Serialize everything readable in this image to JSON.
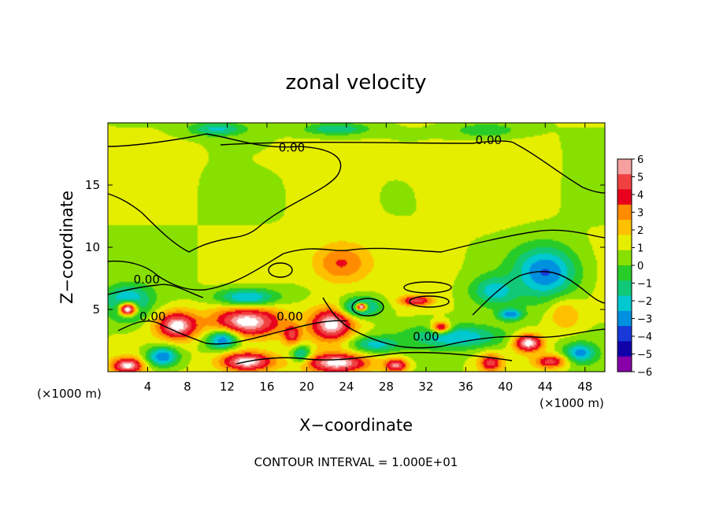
{
  "chart_data": {
    "type": "heatmap",
    "title": "zonal velocity",
    "xlabel": "X−coordinate",
    "ylabel": "Z−coordinate",
    "x_unit": "(×1000 m)",
    "z_unit": "(×1000 m)",
    "xlim": [
      0,
      50
    ],
    "ylim": [
      0,
      20
    ],
    "x_ticks": [
      4,
      8,
      12,
      16,
      20,
      24,
      28,
      32,
      36,
      40,
      44,
      48
    ],
    "x_tick_labels": [
      "4",
      "8",
      "12",
      "16",
      "20",
      "24",
      "28",
      "32",
      "36",
      "40",
      "44",
      "48"
    ],
    "y_ticks": [
      5,
      10,
      15
    ],
    "y_tick_labels": [
      "5",
      "10",
      "15"
    ],
    "colorbar": {
      "levels": [
        6,
        5,
        4,
        3,
        2,
        1,
        0,
        -1,
        -2,
        -3,
        -4,
        -5,
        -6
      ],
      "labels": [
        "6",
        "5",
        "4",
        "3",
        "2",
        "1",
        "0",
        "−1",
        "−2",
        "−3",
        "−4",
        "−5",
        "−6"
      ],
      "colors": [
        "#f7a0a0",
        "#f04040",
        "#e8001c",
        "#ff8c00",
        "#ffc000",
        "#e6ee00",
        "#88e000",
        "#28cc28",
        "#10c878",
        "#00c8d0",
        "#0090e0",
        "#1838d8",
        "#1000a8",
        "#8800a8"
      ]
    },
    "contour_labels": [
      {
        "text": "0.00",
        "x": 18.5,
        "y": 17.7
      },
      {
        "text": "0.00",
        "x": 38.3,
        "y": 18.3
      },
      {
        "text": "0.00",
        "x": 3.9,
        "y": 7.1
      },
      {
        "text": "0.00",
        "x": 4.5,
        "y": 4.1
      },
      {
        "text": "0.00",
        "x": 18.3,
        "y": 4.1
      },
      {
        "text": "0.00",
        "x": 32.0,
        "y": 2.5
      }
    ],
    "blobs": [
      {
        "x": 25,
        "y": 17,
        "rx": 24,
        "ry": 2.2,
        "v": 0.6
      },
      {
        "x": 37,
        "y": 15,
        "rx": 7,
        "ry": 3.5,
        "v": 1.2
      },
      {
        "x": 24,
        "y": 9,
        "rx": 6,
        "ry": 3,
        "v": 1.2
      },
      {
        "x": 23.5,
        "y": 8.7,
        "rx": 3.2,
        "ry": 1.8,
        "v": 3.6
      },
      {
        "x": 11,
        "y": 19.5,
        "rx": 3.5,
        "ry": 0.7,
        "v": -2.8
      },
      {
        "x": 23,
        "y": 19.5,
        "rx": 4,
        "ry": 0.6,
        "v": -2.5
      },
      {
        "x": 38,
        "y": 19.4,
        "rx": 4,
        "ry": 0.7,
        "v": -1.5
      },
      {
        "x": 44,
        "y": 8,
        "rx": 4,
        "ry": 2.6,
        "v": -4.6
      },
      {
        "x": 39,
        "y": 6.5,
        "rx": 3,
        "ry": 1.5,
        "v": -3.2
      },
      {
        "x": 2,
        "y": 6,
        "rx": 3,
        "ry": 1.3,
        "v": -3.0
      },
      {
        "x": 2,
        "y": 5,
        "rx": 2.2,
        "ry": 1.2,
        "v": -4.0
      },
      {
        "x": 2,
        "y": 5,
        "rx": 1.2,
        "ry": 0.7,
        "v": 6.8
      },
      {
        "x": 7,
        "y": 3.7,
        "rx": 2.6,
        "ry": 1.4,
        "v": 6.8
      },
      {
        "x": 14,
        "y": 4.0,
        "rx": 4.5,
        "ry": 1.6,
        "v": 6.8
      },
      {
        "x": 14,
        "y": 6.0,
        "rx": 4,
        "ry": 0.9,
        "v": -3.5
      },
      {
        "x": 11.5,
        "y": 2.5,
        "rx": 2,
        "ry": 1.0,
        "v": -4.0
      },
      {
        "x": 22.5,
        "y": 3.8,
        "rx": 2.8,
        "ry": 1.7,
        "v": 6.8
      },
      {
        "x": 25.5,
        "y": 5.2,
        "rx": 2.2,
        "ry": 0.9,
        "v": -4.8
      },
      {
        "x": 25.5,
        "y": 5.2,
        "rx": 0.8,
        "ry": 0.4,
        "v": 6.8
      },
      {
        "x": 31,
        "y": 5.7,
        "rx": 2,
        "ry": 0.5,
        "v": 5.5
      },
      {
        "x": 35,
        "y": 2.8,
        "rx": 6,
        "ry": 1.2,
        "v": -3.5
      },
      {
        "x": 40.5,
        "y": 4.6,
        "rx": 1.5,
        "ry": 0.6,
        "v": -4.5
      },
      {
        "x": 42.3,
        "y": 2.3,
        "rx": 1.8,
        "ry": 0.9,
        "v": 6.8
      },
      {
        "x": 46,
        "y": 4.5,
        "rx": 2,
        "ry": 1.5,
        "v": 2.5
      },
      {
        "x": 47.5,
        "y": 1.5,
        "rx": 2,
        "ry": 1,
        "v": -4
      },
      {
        "x": 2,
        "y": 0.5,
        "rx": 2,
        "ry": 0.8,
        "v": 6.8
      },
      {
        "x": 5.5,
        "y": 1.2,
        "rx": 2,
        "ry": 1,
        "v": -4.5
      },
      {
        "x": 14,
        "y": 0.8,
        "rx": 3.5,
        "ry": 1,
        "v": 6.8
      },
      {
        "x": 19.5,
        "y": 1.3,
        "rx": 1.2,
        "ry": 0.9,
        "v": -4
      },
      {
        "x": 23,
        "y": 0.7,
        "rx": 4,
        "ry": 1,
        "v": 6.8
      },
      {
        "x": 27,
        "y": 2.2,
        "rx": 3,
        "ry": 0.8,
        "v": -3
      },
      {
        "x": 29,
        "y": 0.5,
        "rx": 1.5,
        "ry": 0.7,
        "v": 6
      },
      {
        "x": 38.5,
        "y": 0.7,
        "rx": 1.5,
        "ry": 0.9,
        "v": 5
      },
      {
        "x": 18.5,
        "y": 3.0,
        "rx": 1.2,
        "ry": 1.0,
        "v": 5
      },
      {
        "x": 33.5,
        "y": 3.6,
        "rx": 1.2,
        "ry": 0.6,
        "v": 4.5
      },
      {
        "x": 44.5,
        "y": 0.8,
        "rx": 2,
        "ry": 0.7,
        "v": 5
      }
    ],
    "footer": "CONTOUR INTERVAL = 1.000E+01"
  }
}
